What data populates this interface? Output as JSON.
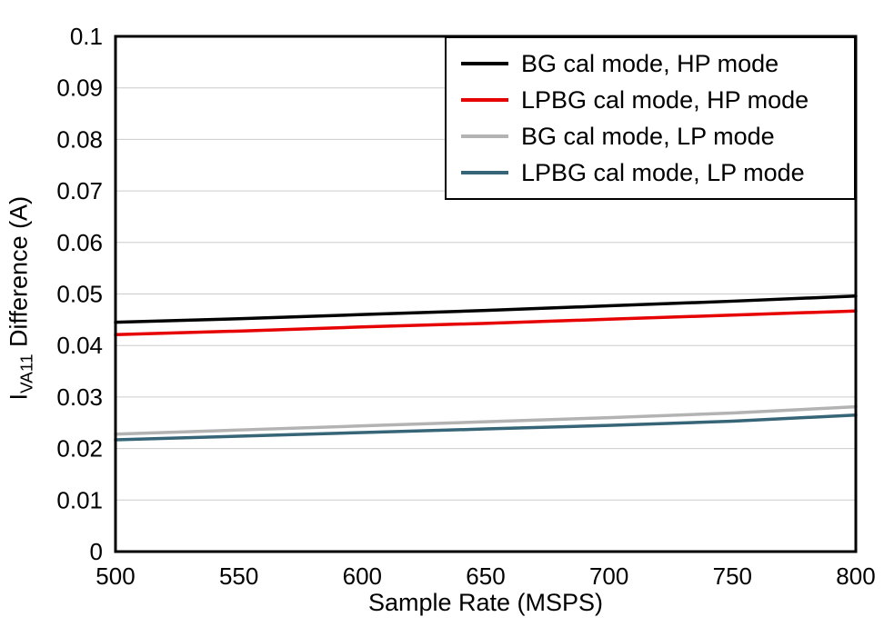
{
  "chart_data": {
    "type": "line",
    "title": "",
    "xlabel": "Sample Rate (MSPS)",
    "ylabel": "IVA11 Difference (A)",
    "ylabel_parts": {
      "main": "I",
      "sub": "VA11",
      "rest": " Difference (A)"
    },
    "xlim": [
      500,
      800
    ],
    "ylim": [
      0,
      0.1
    ],
    "xticks": [
      500,
      550,
      600,
      650,
      700,
      750,
      800
    ],
    "yticks": [
      0,
      0.01,
      0.02,
      0.03,
      0.04,
      0.05,
      0.06,
      0.07,
      0.08,
      0.09,
      0.1
    ],
    "ytick_labels": [
      "0",
      "0.01",
      "0.02",
      "0.03",
      "0.04",
      "0.05",
      "0.06",
      "0.07",
      "0.08",
      "0.09",
      "0.1"
    ],
    "grid": "horizontal",
    "grid_color": "#cccccc",
    "axis_color": "#000000",
    "legend_position": "top-right",
    "x": [
      500,
      550,
      600,
      650,
      700,
      750,
      800
    ],
    "series": [
      {
        "name": "BG cal mode, HP mode",
        "color": "#000000",
        "values": [
          0.0445,
          0.0452,
          0.046,
          0.0468,
          0.0477,
          0.0486,
          0.0496
        ]
      },
      {
        "name": "LPBG cal mode, HP mode",
        "color": "#e60000",
        "values": [
          0.0421,
          0.0428,
          0.0436,
          0.0443,
          0.0451,
          0.0459,
          0.0467
        ]
      },
      {
        "name": "BG cal mode, LP mode",
        "color": "#b3b3b3",
        "values": [
          0.0228,
          0.0236,
          0.0244,
          0.0252,
          0.026,
          0.0269,
          0.0281
        ]
      },
      {
        "name": "LPBG cal mode, LP mode",
        "color": "#376578",
        "values": [
          0.0217,
          0.0224,
          0.0231,
          0.0238,
          0.0245,
          0.0253,
          0.0265
        ]
      }
    ]
  }
}
